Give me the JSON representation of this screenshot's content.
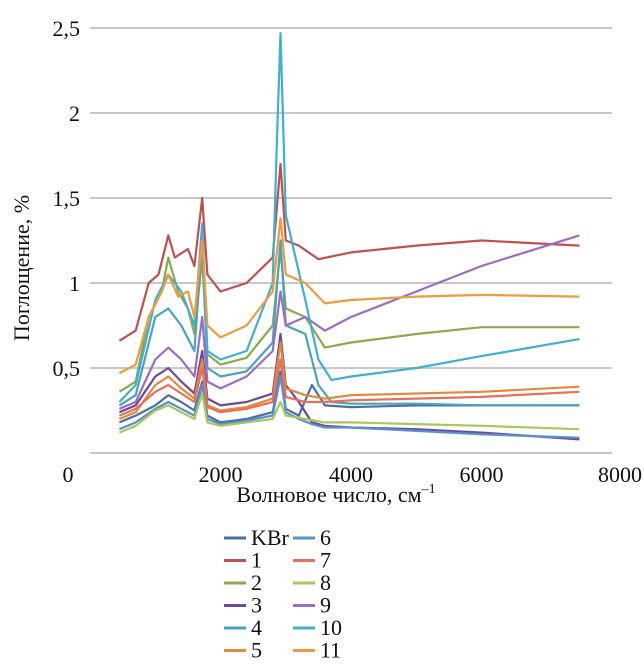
{
  "chart_data": {
    "type": "line",
    "title": "",
    "xlabel": "Волновое число, см",
    "xlabel_sup": "–1",
    "ylabel": "Поглощение, %",
    "xlim": [
      0,
      8000
    ],
    "ylim": [
      0,
      2.5
    ],
    "xticks": [
      {
        "v": 0,
        "label": "0"
      },
      {
        "v": 2000,
        "label": "2000"
      },
      {
        "v": 4000,
        "label": "4000"
      },
      {
        "v": 6000,
        "label": "6000"
      },
      {
        "v": 8000,
        "label": "8000"
      }
    ],
    "yticks": [
      {
        "v": 0.5,
        "label": "0,5"
      },
      {
        "v": 1,
        "label": "1"
      },
      {
        "v": 1.5,
        "label": "1,5"
      },
      {
        "v": 2,
        "label": "2"
      },
      {
        "v": 2.5,
        "label": "2,5"
      }
    ],
    "grid": "horizontal",
    "legend_position": "bottom",
    "series": [
      {
        "name": "KBr",
        "color": "#4a6fa5",
        "points": [
          [
            450,
            0.18
          ],
          [
            700,
            0.22
          ],
          [
            1000,
            0.28
          ],
          [
            1200,
            0.34
          ],
          [
            1400,
            0.3
          ],
          [
            1600,
            0.25
          ],
          [
            1720,
            0.42
          ],
          [
            1800,
            0.22
          ],
          [
            2000,
            0.18
          ],
          [
            2400,
            0.2
          ],
          [
            2800,
            0.24
          ],
          [
            2920,
            0.48
          ],
          [
            3000,
            0.26
          ],
          [
            3200,
            0.22
          ],
          [
            3400,
            0.4
          ],
          [
            3600,
            0.28
          ],
          [
            4000,
            0.27
          ],
          [
            5000,
            0.28
          ],
          [
            6000,
            0.28
          ],
          [
            7500,
            0.28
          ]
        ]
      },
      {
        "name": "1",
        "color": "#c0504d",
        "points": [
          [
            450,
            0.66
          ],
          [
            700,
            0.72
          ],
          [
            900,
            1.0
          ],
          [
            1050,
            1.05
          ],
          [
            1200,
            1.28
          ],
          [
            1300,
            1.15
          ],
          [
            1500,
            1.2
          ],
          [
            1600,
            1.1
          ],
          [
            1720,
            1.5
          ],
          [
            1800,
            1.05
          ],
          [
            2000,
            0.95
          ],
          [
            2400,
            1.0
          ],
          [
            2800,
            1.15
          ],
          [
            2920,
            1.7
          ],
          [
            3000,
            1.25
          ],
          [
            3200,
            1.22
          ],
          [
            3500,
            1.14
          ],
          [
            4000,
            1.18
          ],
          [
            5000,
            1.22
          ],
          [
            6000,
            1.25
          ],
          [
            7500,
            1.22
          ]
        ]
      },
      {
        "name": "2",
        "color": "#8aab4c",
        "points": [
          [
            450,
            0.36
          ],
          [
            700,
            0.42
          ],
          [
            900,
            0.8
          ],
          [
            1100,
            0.95
          ],
          [
            1200,
            1.15
          ],
          [
            1350,
            0.95
          ],
          [
            1500,
            0.85
          ],
          [
            1600,
            0.7
          ],
          [
            1720,
            1.15
          ],
          [
            1800,
            0.58
          ],
          [
            2000,
            0.52
          ],
          [
            2400,
            0.56
          ],
          [
            2800,
            0.75
          ],
          [
            2920,
            1.2
          ],
          [
            3000,
            0.85
          ],
          [
            3300,
            0.8
          ],
          [
            3600,
            0.62
          ],
          [
            4000,
            0.65
          ],
          [
            5000,
            0.7
          ],
          [
            6000,
            0.74
          ],
          [
            7500,
            0.74
          ]
        ]
      },
      {
        "name": "3",
        "color": "#6b4a99",
        "points": [
          [
            450,
            0.24
          ],
          [
            700,
            0.28
          ],
          [
            1000,
            0.45
          ],
          [
            1200,
            0.5
          ],
          [
            1400,
            0.42
          ],
          [
            1600,
            0.35
          ],
          [
            1720,
            0.6
          ],
          [
            1800,
            0.32
          ],
          [
            2000,
            0.28
          ],
          [
            2400,
            0.3
          ],
          [
            2800,
            0.35
          ],
          [
            2920,
            0.7
          ],
          [
            3000,
            0.4
          ],
          [
            3200,
            0.3
          ],
          [
            3400,
            0.18
          ],
          [
            3600,
            0.16
          ],
          [
            4000,
            0.15
          ],
          [
            5000,
            0.14
          ],
          [
            6000,
            0.12
          ],
          [
            7500,
            0.08
          ]
        ]
      },
      {
        "name": "4",
        "color": "#4aa3b8",
        "points": [
          [
            450,
            0.28
          ],
          [
            700,
            0.34
          ],
          [
            1000,
            0.8
          ],
          [
            1200,
            0.85
          ],
          [
            1400,
            0.75
          ],
          [
            1600,
            0.6
          ],
          [
            1720,
            1.25
          ],
          [
            1800,
            0.5
          ],
          [
            2000,
            0.45
          ],
          [
            2400,
            0.48
          ],
          [
            2800,
            0.65
          ],
          [
            2920,
            1.25
          ],
          [
            3000,
            0.75
          ],
          [
            3300,
            0.7
          ],
          [
            3500,
            0.4
          ],
          [
            3700,
            0.3
          ],
          [
            4000,
            0.29
          ],
          [
            5000,
            0.29
          ],
          [
            6000,
            0.28
          ],
          [
            7500,
            0.28
          ]
        ]
      },
      {
        "name": "5",
        "color": "#e28a3c",
        "points": [
          [
            450,
            0.2
          ],
          [
            700,
            0.24
          ],
          [
            1000,
            0.4
          ],
          [
            1200,
            0.45
          ],
          [
            1400,
            0.38
          ],
          [
            1600,
            0.32
          ],
          [
            1720,
            0.55
          ],
          [
            1800,
            0.28
          ],
          [
            2000,
            0.25
          ],
          [
            2400,
            0.27
          ],
          [
            2800,
            0.32
          ],
          [
            2920,
            0.65
          ],
          [
            3000,
            0.38
          ],
          [
            3300,
            0.34
          ],
          [
            3600,
            0.32
          ],
          [
            4000,
            0.34
          ],
          [
            5000,
            0.35
          ],
          [
            6000,
            0.36
          ],
          [
            7500,
            0.39
          ]
        ]
      },
      {
        "name": "6",
        "color": "#5b8fd1",
        "points": [
          [
            450,
            0.14
          ],
          [
            700,
            0.18
          ],
          [
            1000,
            0.26
          ],
          [
            1200,
            0.3
          ],
          [
            1400,
            0.26
          ],
          [
            1600,
            0.22
          ],
          [
            1720,
            0.4
          ],
          [
            1800,
            0.2
          ],
          [
            2000,
            0.17
          ],
          [
            2400,
            0.19
          ],
          [
            2800,
            0.22
          ],
          [
            2920,
            0.45
          ],
          [
            3000,
            0.24
          ],
          [
            3200,
            0.2
          ],
          [
            3400,
            0.17
          ],
          [
            3600,
            0.15
          ],
          [
            4000,
            0.15
          ],
          [
            5000,
            0.13
          ],
          [
            6000,
            0.11
          ],
          [
            7500,
            0.09
          ]
        ]
      },
      {
        "name": "7",
        "color": "#e86f5a",
        "points": [
          [
            450,
            0.22
          ],
          [
            700,
            0.26
          ],
          [
            1000,
            0.36
          ],
          [
            1200,
            0.4
          ],
          [
            1400,
            0.35
          ],
          [
            1600,
            0.3
          ],
          [
            1720,
            0.5
          ],
          [
            1800,
            0.27
          ],
          [
            2000,
            0.24
          ],
          [
            2400,
            0.26
          ],
          [
            2800,
            0.3
          ],
          [
            2920,
            0.55
          ],
          [
            3000,
            0.33
          ],
          [
            3300,
            0.3
          ],
          [
            3600,
            0.3
          ],
          [
            4000,
            0.31
          ],
          [
            5000,
            0.32
          ],
          [
            6000,
            0.33
          ],
          [
            7500,
            0.36
          ]
        ]
      },
      {
        "name": "8",
        "color": "#a6c95a",
        "points": [
          [
            450,
            0.12
          ],
          [
            700,
            0.16
          ],
          [
            1000,
            0.25
          ],
          [
            1200,
            0.28
          ],
          [
            1400,
            0.24
          ],
          [
            1600,
            0.2
          ],
          [
            1720,
            0.35
          ],
          [
            1800,
            0.18
          ],
          [
            2000,
            0.16
          ],
          [
            2400,
            0.18
          ],
          [
            2800,
            0.2
          ],
          [
            2920,
            0.3
          ],
          [
            3000,
            0.22
          ],
          [
            3300,
            0.2
          ],
          [
            3600,
            0.18
          ],
          [
            4000,
            0.18
          ],
          [
            5000,
            0.17
          ],
          [
            6000,
            0.16
          ],
          [
            7500,
            0.14
          ]
        ]
      },
      {
        "name": "9",
        "color": "#9b6cc7",
        "points": [
          [
            450,
            0.26
          ],
          [
            700,
            0.3
          ],
          [
            1000,
            0.55
          ],
          [
            1200,
            0.62
          ],
          [
            1400,
            0.55
          ],
          [
            1600,
            0.45
          ],
          [
            1720,
            0.8
          ],
          [
            1800,
            0.42
          ],
          [
            2000,
            0.38
          ],
          [
            2400,
            0.45
          ],
          [
            2800,
            0.6
          ],
          [
            2920,
            0.95
          ],
          [
            3000,
            0.75
          ],
          [
            3300,
            0.8
          ],
          [
            3600,
            0.72
          ],
          [
            4000,
            0.8
          ],
          [
            5000,
            0.95
          ],
          [
            6000,
            1.1
          ],
          [
            7500,
            1.28
          ]
        ]
      },
      {
        "name": "10",
        "color": "#3fb0cf",
        "points": [
          [
            450,
            0.3
          ],
          [
            700,
            0.4
          ],
          [
            1000,
            0.9
          ],
          [
            1200,
            1.05
          ],
          [
            1400,
            0.95
          ],
          [
            1600,
            0.75
          ],
          [
            1720,
            1.35
          ],
          [
            1800,
            0.6
          ],
          [
            2000,
            0.55
          ],
          [
            2400,
            0.6
          ],
          [
            2800,
            1.0
          ],
          [
            2860,
            1.78
          ],
          [
            2920,
            2.47
          ],
          [
            3000,
            1.4
          ],
          [
            3300,
            0.9
          ],
          [
            3500,
            0.55
          ],
          [
            3700,
            0.43
          ],
          [
            4000,
            0.45
          ],
          [
            5000,
            0.5
          ],
          [
            6000,
            0.57
          ],
          [
            7500,
            0.67
          ]
        ]
      },
      {
        "name": "11",
        "color": "#f29a3e",
        "points": [
          [
            450,
            0.47
          ],
          [
            700,
            0.52
          ],
          [
            900,
            0.8
          ],
          [
            1100,
            0.95
          ],
          [
            1200,
            1.05
          ],
          [
            1350,
            0.92
          ],
          [
            1500,
            0.95
          ],
          [
            1600,
            0.8
          ],
          [
            1720,
            1.25
          ],
          [
            1800,
            0.75
          ],
          [
            2000,
            0.68
          ],
          [
            2400,
            0.75
          ],
          [
            2800,
            0.95
          ],
          [
            2920,
            1.38
          ],
          [
            3000,
            1.05
          ],
          [
            3300,
            1.0
          ],
          [
            3600,
            0.88
          ],
          [
            4000,
            0.9
          ],
          [
            5000,
            0.92
          ],
          [
            6000,
            0.93
          ],
          [
            7500,
            0.92
          ]
        ]
      }
    ]
  }
}
